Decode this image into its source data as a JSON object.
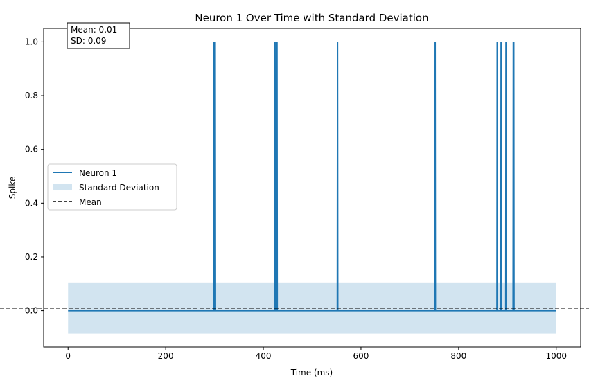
{
  "chart_data": {
    "type": "line",
    "title": "Neuron 1 Over Time with Standard Deviation",
    "xlabel": "Time (ms)",
    "ylabel": "Spike",
    "xlim": [
      -50,
      1050
    ],
    "ylim": [
      -0.135,
      1.05
    ],
    "xticks": [
      0,
      200,
      400,
      600,
      800,
      1000
    ],
    "xtick_labels": [
      "0",
      "200",
      "400",
      "600",
      "800",
      "1000"
    ],
    "yticks": [
      0.0,
      0.2,
      0.4,
      0.6,
      0.8,
      1.0
    ],
    "ytick_labels": [
      "0.0",
      "0.2",
      "0.4",
      "0.6",
      "0.8",
      "1.0"
    ],
    "grid": false,
    "series": [
      {
        "name": "Neuron 1",
        "color": "#1f77b4",
        "x_range": [
          0,
          999
        ],
        "baseline": 0,
        "spike_times": [
          299,
          300,
          424,
          428,
          552,
          752,
          879,
          887,
          897,
          912,
          913
        ]
      }
    ],
    "std_band": {
      "name": "Standard Deviation",
      "color": "#1f77b4",
      "opacity": 0.2,
      "x_range": [
        0,
        999
      ],
      "lower": -0.085,
      "upper": 0.105
    },
    "mean_line": {
      "name": "Mean",
      "value": 0.01,
      "color": "#000000",
      "style": "dashed"
    },
    "legend": {
      "position": "center-left",
      "entries": [
        "Neuron 1",
        "Standard Deviation",
        "Mean"
      ]
    },
    "annotation": {
      "lines": [
        "Mean: 0.01",
        "SD: 0.09"
      ],
      "position": "top-left"
    }
  }
}
